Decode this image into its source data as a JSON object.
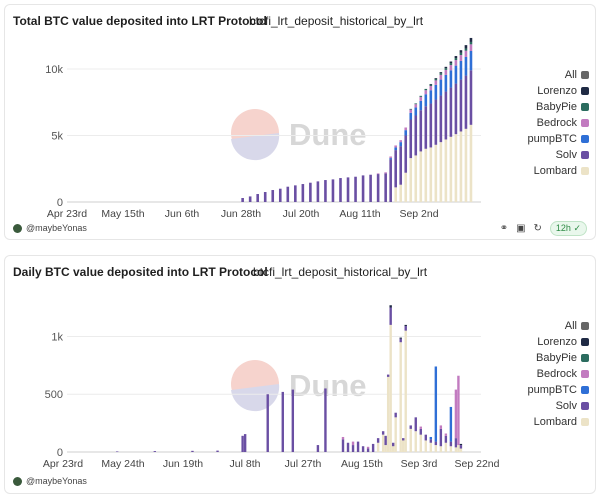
{
  "colors": {
    "Lombard": "#ece3c7",
    "Solv": "#6a4fa3",
    "pumpBTC": "#2f6fd6",
    "Bedrock": "#c27bc0",
    "BabyPie": "#2b6c5f",
    "Lorenzo": "#1f2a44",
    "All": "#666666"
  },
  "watermark": "Dune",
  "panels": [
    {
      "title": "Total BTC value deposited into LRT Protocol",
      "query": "btcfi_lrt_deposit_historical_by_lrt",
      "author": "@maybeYonas",
      "refresh": "12h",
      "legend": [
        "All",
        "Lorenzo",
        "BabyPie",
        "Bedrock",
        "pumpBTC",
        "Solv",
        "Lombard"
      ]
    },
    {
      "title": "Daily BTC value deposited into LRT Protocol",
      "query": "btcfi_lrt_deposit_historical_by_lrt",
      "author": "@maybeYonas",
      "legend": [
        "All",
        "Lorenzo",
        "BabyPie",
        "Bedrock",
        "pumpBTC",
        "Solv",
        "Lombard"
      ]
    }
  ],
  "chart_data": [
    {
      "type": "bar",
      "stacked": true,
      "x_ticks": [
        "Apr 23rd",
        "May 15th",
        "Jun 6th",
        "Jun 28th",
        "Jul 20th",
        "Aug 11th",
        "Sep 2nd"
      ],
      "y_ticks": [
        "0",
        "5k",
        "10k"
      ],
      "ylim": [
        0,
        11800
      ],
      "bars": [
        {
          "day": 70,
          "Solv": 300
        },
        {
          "day": 73,
          "Solv": 420
        },
        {
          "day": 76,
          "Solv": 600
        },
        {
          "day": 79,
          "Solv": 750
        },
        {
          "day": 82,
          "Solv": 900
        },
        {
          "day": 85,
          "Solv": 1000
        },
        {
          "day": 88,
          "Solv": 1150
        },
        {
          "day": 91,
          "Solv": 1250
        },
        {
          "day": 94,
          "Solv": 1350
        },
        {
          "day": 97,
          "Solv": 1450
        },
        {
          "day": 100,
          "Solv": 1550
        },
        {
          "day": 103,
          "Solv": 1650
        },
        {
          "day": 106,
          "Solv": 1700
        },
        {
          "day": 109,
          "Solv": 1800
        },
        {
          "day": 112,
          "Solv": 1850
        },
        {
          "day": 115,
          "Solv": 1900
        },
        {
          "day": 118,
          "Solv": 2000
        },
        {
          "day": 121,
          "Solv": 2050
        },
        {
          "day": 124,
          "Solv": 2100,
          "Bedrock": 50
        },
        {
          "day": 127,
          "Solv": 2150,
          "Bedrock": 80
        },
        {
          "day": 129,
          "Solv": 3200,
          "Bedrock": 120,
          "pumpBTC": 100
        },
        {
          "day": 131,
          "Lombard": 1100,
          "Solv": 2800,
          "Bedrock": 150,
          "pumpBTC": 200
        },
        {
          "day": 133,
          "Lombard": 1300,
          "Solv": 2900,
          "Bedrock": 150,
          "pumpBTC": 300
        },
        {
          "day": 135,
          "Lombard": 2200,
          "Solv": 2800,
          "Bedrock": 200,
          "pumpBTC": 400
        },
        {
          "day": 137,
          "Lombard": 3300,
          "Solv": 2900,
          "Bedrock": 250,
          "pumpBTC": 500,
          "BabyPie": 50
        },
        {
          "day": 139,
          "Lombard": 3500,
          "Solv": 3000,
          "Bedrock": 250,
          "pumpBTC": 600,
          "BabyPie": 60
        },
        {
          "day": 141,
          "Lombard": 3800,
          "Solv": 3100,
          "Bedrock": 300,
          "pumpBTC": 700,
          "BabyPie": 80
        },
        {
          "day": 143,
          "Lombard": 4000,
          "Solv": 3200,
          "Bedrock": 300,
          "pumpBTC": 900,
          "BabyPie": 100
        },
        {
          "day": 145,
          "Lombard": 4100,
          "Solv": 3300,
          "Bedrock": 320,
          "pumpBTC": 1000,
          "BabyPie": 100,
          "Lorenzo": 50
        },
        {
          "day": 147,
          "Lombard": 4300,
          "Solv": 3400,
          "Bedrock": 340,
          "pumpBTC": 1100,
          "BabyPie": 110,
          "Lorenzo": 60
        },
        {
          "day": 149,
          "Lombard": 4500,
          "Solv": 3500,
          "Bedrock": 360,
          "pumpBTC": 1200,
          "BabyPie": 120,
          "Lorenzo": 80
        },
        {
          "day": 151,
          "Lombard": 4700,
          "Solv": 3600,
          "Bedrock": 380,
          "pumpBTC": 1250,
          "BabyPie": 130,
          "Lorenzo": 100
        },
        {
          "day": 153,
          "Lombard": 4900,
          "Solv": 3700,
          "Bedrock": 400,
          "pumpBTC": 1300,
          "BabyPie": 140,
          "Lorenzo": 120
        },
        {
          "day": 155,
          "Lombard": 5100,
          "Solv": 3800,
          "Bedrock": 420,
          "pumpBTC": 1350,
          "BabyPie": 150,
          "Lorenzo": 150
        },
        {
          "day": 157,
          "Lombard": 5300,
          "Solv": 3900,
          "Bedrock": 450,
          "pumpBTC": 1400,
          "BabyPie": 160,
          "Lorenzo": 200
        },
        {
          "day": 159,
          "Lombard": 5500,
          "Solv": 4000,
          "Bedrock": 470,
          "pumpBTC": 1400,
          "BabyPie": 170,
          "Lorenzo": 250
        },
        {
          "day": 161,
          "Lombard": 5800,
          "Solv": 4100,
          "Bedrock": 500,
          "pumpBTC": 1450,
          "BabyPie": 180,
          "Lorenzo": 300
        }
      ]
    },
    {
      "type": "bar",
      "stacked": true,
      "x_ticks": [
        "Apr 23rd",
        "May 24th",
        "Jun 19th",
        "Jul 8th",
        "Jul 27th",
        "Aug 15th",
        "Sep 3rd",
        "Sep 22nd"
      ],
      "y_ticks": [
        "0",
        "500",
        "1k"
      ],
      "ylim": [
        0,
        1350
      ],
      "bars": [
        {
          "day": 20,
          "Solv": 5
        },
        {
          "day": 35,
          "Solv": 8
        },
        {
          "day": 50,
          "Solv": 10
        },
        {
          "day": 60,
          "Solv": 12
        },
        {
          "day": 70,
          "Solv": 140
        },
        {
          "day": 71,
          "Solv": 155
        },
        {
          "day": 80,
          "Solv": 500
        },
        {
          "day": 86,
          "Solv": 520
        },
        {
          "day": 90,
          "Solv": 540
        },
        {
          "day": 100,
          "Solv": 60
        },
        {
          "day": 103,
          "Solv": 550
        },
        {
          "day": 110,
          "Solv": 110,
          "Bedrock": 20
        },
        {
          "day": 112,
          "Solv": 80
        },
        {
          "day": 114,
          "Solv": 60,
          "Bedrock": 30
        },
        {
          "day": 116,
          "Solv": 90
        },
        {
          "day": 118,
          "Solv": 50
        },
        {
          "day": 120,
          "Solv": 30,
          "Bedrock": 15
        },
        {
          "day": 122,
          "Solv": 70
        },
        {
          "day": 124,
          "Lombard": 80,
          "Solv": 40
        },
        {
          "day": 126,
          "Lombard": 150,
          "Solv": 30
        },
        {
          "day": 127,
          "Lombard": 60,
          "Solv": 80
        },
        {
          "day": 128,
          "Lombard": 650,
          "Solv": 20
        },
        {
          "day": 129,
          "Lombard": 1100,
          "Solv": 150,
          "Lorenzo": 20
        },
        {
          "day": 130,
          "Lombard": 50,
          "Solv": 30
        },
        {
          "day": 131,
          "Lombard": 300,
          "Solv": 40
        },
        {
          "day": 133,
          "Lombard": 950,
          "Solv": 30,
          "Lorenzo": 10
        },
        {
          "day": 134,
          "Lombard": 100,
          "Solv": 20
        },
        {
          "day": 135,
          "Lombard": 1050,
          "Solv": 40,
          "Lorenzo": 10
        },
        {
          "day": 137,
          "Lombard": 200,
          "Solv": 30
        },
        {
          "day": 139,
          "Lombard": 180,
          "Solv": 120
        },
        {
          "day": 141,
          "Lombard": 150,
          "Solv": 50,
          "Bedrock": 20
        },
        {
          "day": 143,
          "Lombard": 100,
          "Solv": 50
        },
        {
          "day": 145,
          "Lombard": 80,
          "Solv": 30,
          "pumpBTC": 20
        },
        {
          "day": 147,
          "Lombard": 60,
          "pumpBTC": 650,
          "Solv": 30
        },
        {
          "day": 149,
          "Lombard": 50,
          "Solv": 150,
          "Bedrock": 30
        },
        {
          "day": 151,
          "Lombard": 80,
          "Solv": 60,
          "Bedrock": 20
        },
        {
          "day": 153,
          "Lombard": 50,
          "pumpBTC": 300,
          "Solv": 40
        },
        {
          "day": 155,
          "Lombard": 40,
          "Solv": 80,
          "Bedrock": 420
        },
        {
          "day": 156,
          "Lombard": 60,
          "Bedrock": 600
        },
        {
          "day": 157,
          "Lombard": 30,
          "Solv": 30,
          "Lorenzo": 10
        }
      ]
    }
  ]
}
